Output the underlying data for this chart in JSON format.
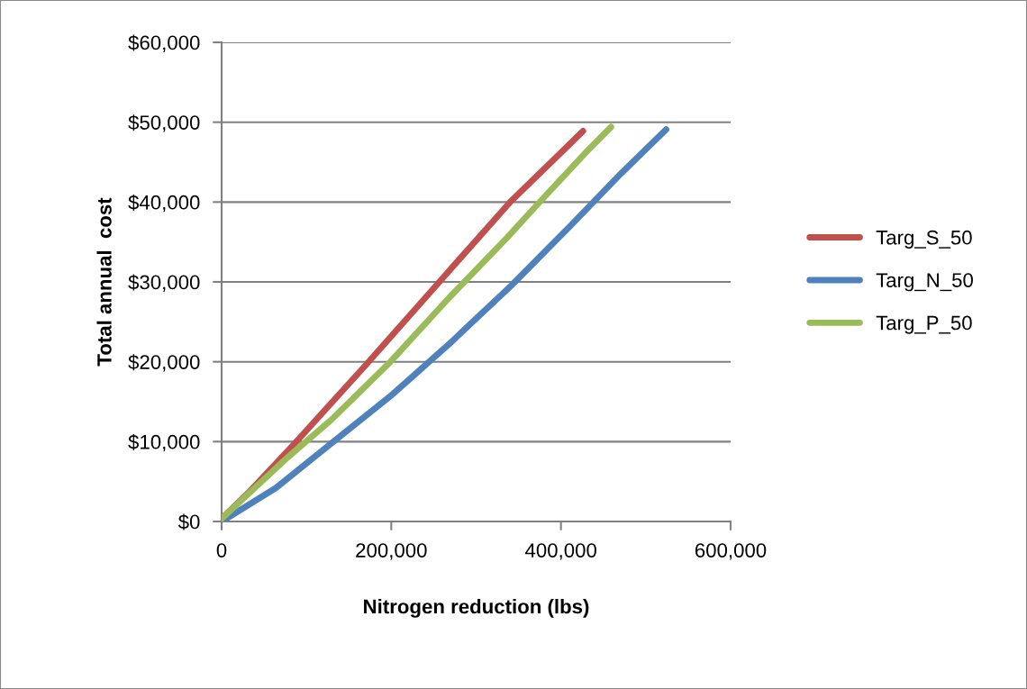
{
  "chart_data": {
    "type": "line",
    "xlabel": "Nitrogen reduction (lbs)",
    "ylabel": "Total annual  cost",
    "xlim": [
      0,
      600000
    ],
    "xticks": [
      {
        "value": 0,
        "label": "0"
      },
      {
        "value": 200000,
        "label": "200,000"
      },
      {
        "value": 400000,
        "label": "400,000"
      },
      {
        "value": 600000,
        "label": "600,000"
      }
    ],
    "ylim": [
      0,
      60000
    ],
    "yticks": [
      {
        "value": 0,
        "label": "$0"
      },
      {
        "value": 10000,
        "label": "$10,000"
      },
      {
        "value": 20000,
        "label": "$20,000"
      },
      {
        "value": 30000,
        "label": "$30,000"
      },
      {
        "value": 40000,
        "label": "$40,000"
      },
      {
        "value": 50000,
        "label": "$50,000"
      },
      {
        "value": 60000,
        "label": "$60,000"
      }
    ],
    "grid": "y",
    "legend": "right",
    "marker": "none",
    "line_style": "solid",
    "series": [
      {
        "name": "Targ_S_50",
        "color": "#c0504d",
        "x": [
          0,
          31700,
          84700,
          170000,
          260000,
          341000,
          406000,
          426000
        ],
        "values": [
          350,
          3600,
          9600,
          19600,
          30400,
          40100,
          46800,
          48900
        ]
      },
      {
        "name": "Targ_N_50",
        "color": "#4f81bd",
        "x": [
          0,
          64000,
          133000,
          199000,
          268000,
          341000,
          410000,
          471000,
          524000
        ],
        "values": [
          0,
          4200,
          10100,
          15700,
          22200,
          29500,
          36900,
          43600,
          49100
        ]
      },
      {
        "name": "Targ_P_50",
        "color": "#9bbb59",
        "x": [
          0,
          76500,
          129000,
          199000,
          268000,
          337000,
          374000,
          431000,
          459000
        ],
        "values": [
          350,
          7900,
          12700,
          20000,
          28000,
          35600,
          39900,
          46400,
          49400
        ]
      }
    ]
  }
}
